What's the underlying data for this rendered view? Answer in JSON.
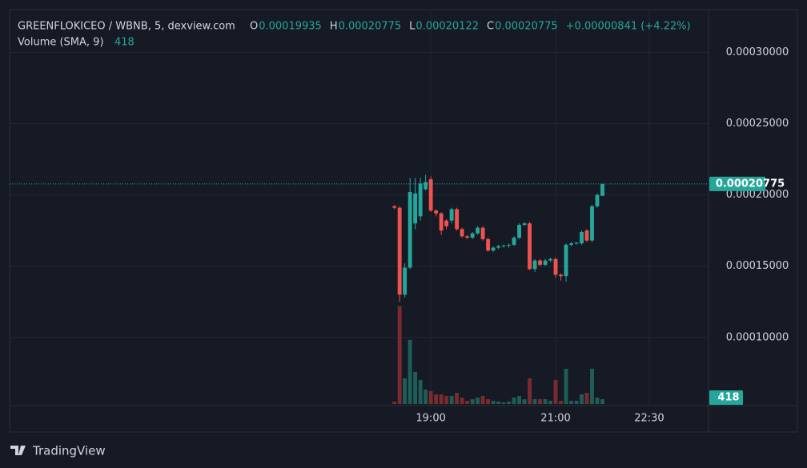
{
  "chart_data": {
    "type": "candlestick",
    "header": {
      "symbol": "GREENFLOKICEO / WBNB, 5, dexview.com",
      "ohlc": [
        {
          "label": "O",
          "value": "0.00019935"
        },
        {
          "label": "H",
          "value": "0.00020775"
        },
        {
          "label": "L",
          "value": "0.00020122"
        },
        {
          "label": "C",
          "value": "0.00020775"
        }
      ],
      "change": "+0.00000841 (+4.22%)"
    },
    "volume_indicator": {
      "title": "Volume (SMA, 9)",
      "value": 418
    },
    "last_price": 0.00020775,
    "x": [
      1105,
      1110,
      1115,
      1120,
      1125,
      1130,
      1135,
      1140,
      1145,
      1150,
      1155,
      1160,
      1165,
      1170,
      1175,
      1180,
      1185,
      1190,
      1195,
      1200,
      1205,
      1210,
      1215,
      1220,
      1225,
      1230,
      1235,
      1240,
      1245,
      1250,
      1255,
      1260,
      1265,
      1270,
      1275,
      1280,
      1285,
      1290,
      1295,
      1300,
      1305
    ],
    "open": [
      0.000192,
      0.000191,
      0.00013,
      0.000149,
      0.00018,
      0.000185,
      0.000204,
      0.000211,
      0.000189,
      0.000187,
      0.000182,
      0.000182,
      0.00019,
      0.000176,
      0.000171,
      0.00017,
      0.000173,
      0.000177,
      0.000169,
      0.000161,
      0.000163,
      0.000164,
      0.0001645,
      0.000165,
      0.00017,
      0.000179,
      0.00018,
      0.000148,
      0.000154,
      0.000151,
      0.000154,
      0.000155,
      0.000144,
      0.000143,
      0.000165,
      0.000166,
      0.000166,
      0.000175,
      0.000168,
      0.000192,
      0.00019935
    ],
    "high": [
      0.000193,
      0.000192,
      0.000152,
      0.000212,
      0.000212,
      0.000212,
      0.000214,
      0.000213,
      0.00019,
      0.000188,
      0.000183,
      0.000191,
      0.000191,
      0.000177,
      0.000172,
      0.000174,
      0.000178,
      0.000178,
      0.00017,
      0.000164,
      0.000165,
      0.000165,
      0.000166,
      0.000171,
      0.00018,
      0.000181,
      0.000181,
      0.000155,
      0.000155,
      0.000155,
      0.000156,
      0.000156,
      0.000145,
      0.000166,
      0.000167,
      0.000167,
      0.000175,
      0.000176,
      0.000193,
      0.000201,
      0.00020775
    ],
    "low": [
      0.00019,
      0.000125,
      0.000128,
      0.000148,
      0.000176,
      0.000182,
      0.000203,
      0.000188,
      0.000185,
      0.000172,
      0.000176,
      0.00018,
      0.000175,
      0.00017,
      0.000169,
      0.000169,
      0.000172,
      0.000168,
      0.00016,
      0.00016,
      0.000162,
      0.000163,
      0.000163,
      0.000164,
      0.000169,
      0.000178,
      0.000147,
      0.000146,
      0.00015,
      0.00015,
      0.000153,
      0.000142,
      0.00014,
      0.000139,
      0.000164,
      0.000165,
      0.000165,
      0.000167,
      0.000167,
      0.000191,
      0.00020122
    ],
    "close": [
      0.000191,
      0.00013,
      0.000149,
      0.000202,
      0.000201,
      0.000208,
      0.000209,
      0.000189,
      0.000187,
      0.000175,
      0.000178,
      0.00019,
      0.000176,
      0.000171,
      0.00017,
      0.000173,
      0.000177,
      0.000169,
      0.000161,
      0.000163,
      0.000164,
      0.0001645,
      0.000165,
      0.00017,
      0.000179,
      0.00018,
      0.000148,
      0.000154,
      0.000151,
      0.000154,
      0.000155,
      0.000144,
      0.000143,
      0.000165,
      0.000166,
      0.0001665,
      0.000174,
      0.000168,
      0.000192,
      0.0002,
      0.00020775
    ],
    "volume": [
      63,
      2562,
      672,
      1680,
      840,
      630,
      378,
      336,
      252,
      252,
      210,
      210,
      294,
      168,
      84,
      126,
      168,
      210,
      126,
      84,
      63,
      42,
      63,
      168,
      210,
      126,
      672,
      126,
      126,
      126,
      84,
      630,
      84,
      924,
      84,
      84,
      252,
      294,
      924,
      168,
      126
    ],
    "xlim": [
      735,
      1407
    ],
    "xticks": [
      {
        "value": 1140,
        "label": "19:00"
      },
      {
        "value": 1260,
        "label": "21:00"
      },
      {
        "value": 1350,
        "label": "22:30"
      }
    ],
    "ylim": [
      5.22e-05,
      0.00033
    ],
    "yticks": [
      {
        "value": 0.0001,
        "label": "0.00010000"
      },
      {
        "value": 0.00015,
        "label": "0.00015000"
      },
      {
        "value": 0.0002,
        "label": "0.00020000"
      },
      {
        "value": 0.00025,
        "label": "0.00025000"
      },
      {
        "value": 0.0003,
        "label": "0.00030000"
      }
    ],
    "volume_lim": [
      0,
      3500
    ],
    "grid": true,
    "up_color": "#26a69a",
    "down_color": "#ef5350",
    "volume_up_color": "#1e5e57",
    "volume_down_color": "#7b2b30",
    "branding": "TradingView"
  }
}
